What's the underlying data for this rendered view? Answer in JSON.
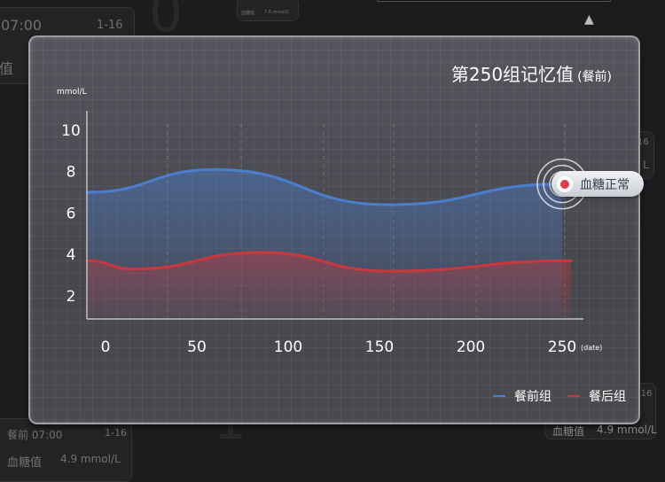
{
  "background": {
    "card_top_left": {
      "time": "07:00",
      "date": "1-16",
      "label": "值"
    },
    "card_top_mid": {
      "label": "血糖值",
      "value": "7.6 mmol/L"
    },
    "card_bottom_left": {
      "time": "餐前 07:00",
      "date": "1-16",
      "label": "血糖值",
      "value": "4.9 mmol/L"
    },
    "card_right_upper": {
      "date": "16",
      "value": "L"
    },
    "card_right_lower": {
      "date": "-16",
      "label": "血糖值",
      "value": "4.9 mmol/L"
    }
  },
  "panel": {
    "title": "第250组记忆值",
    "title_suffix": "(餐前)",
    "unit": "mmol/L",
    "status_badge": "血糖正常"
  },
  "chart_data": {
    "type": "area",
    "xlabel": "(date)",
    "ylabel": "mmol/L",
    "x_ticks": [
      0,
      50,
      100,
      150,
      200,
      250
    ],
    "y_ticks": [
      2,
      4,
      6,
      8,
      10
    ],
    "xlim": [
      -10,
      250
    ],
    "ylim": [
      1,
      11
    ],
    "grid": true,
    "legend": "bottom-right",
    "series": [
      {
        "name": "餐前组",
        "color": "#4a7fd0",
        "x": [
          -10,
          60,
          155,
          250
        ],
        "values": [
          7.0,
          8.1,
          6.4,
          7.4
        ]
      },
      {
        "name": "餐后组",
        "color": "#c8383c",
        "x": [
          -10,
          15,
          85,
          155,
          255
        ],
        "values": [
          3.7,
          3.3,
          4.1,
          3.2,
          3.7
        ]
      }
    ]
  }
}
